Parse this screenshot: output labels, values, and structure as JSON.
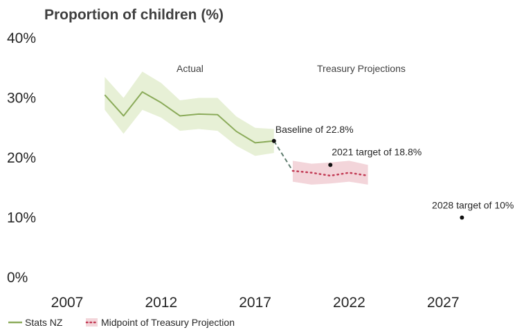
{
  "chart_data": {
    "type": "line",
    "title": "Proportion of children (%)",
    "xlabel": "",
    "ylabel": "",
    "xlim": [
      2007,
      2031
    ],
    "ylim": [
      0,
      40
    ],
    "x_ticks": [
      "2007",
      "2012",
      "2017",
      "2022",
      "2027"
    ],
    "y_ticks": [
      "0%",
      "10%",
      "20%",
      "30%",
      "40%"
    ],
    "grid": false,
    "legend_placement": "bottom-left",
    "section_labels": {
      "actual": "Actual",
      "projections": "Treasury Projections"
    },
    "series": [
      {
        "name": "Stats NZ",
        "color": "#8bab5a",
        "band_color": "#e7f0d6",
        "x": [
          2009,
          2010,
          2011,
          2012,
          2013,
          2014,
          2015,
          2016,
          2017,
          2018
        ],
        "y": [
          30.5,
          27.0,
          31.0,
          29.2,
          27.0,
          27.3,
          27.2,
          24.4,
          22.5,
          22.8
        ],
        "lower": [
          28.0,
          24.0,
          28.0,
          26.7,
          24.5,
          24.8,
          24.5,
          22.0,
          20.3,
          20.8
        ],
        "upper": [
          33.5,
          30.0,
          34.4,
          32.5,
          29.6,
          30.0,
          30.0,
          26.9,
          25.0,
          24.8
        ]
      },
      {
        "name": "Midpoint of Treasury Projection",
        "color": "#c23a54",
        "band_color": "#f3d5da",
        "x": [
          2019,
          2020,
          2021,
          2022,
          2023
        ],
        "y": [
          17.8,
          17.5,
          17.0,
          17.5,
          17.0
        ],
        "lower": [
          16.0,
          15.5,
          15.7,
          16.0,
          15.5
        ],
        "upper": [
          19.5,
          19.0,
          19.2,
          19.5,
          18.8
        ]
      }
    ],
    "connector": {
      "from": [
        2018,
        22.8
      ],
      "to": [
        2019,
        17.8
      ],
      "color": "#5f7c6e"
    },
    "annotations": [
      {
        "label": "Baseline of 22.8%",
        "x": 2018,
        "y": 22.8
      },
      {
        "label": "2021 target of 18.8%",
        "x": 2021,
        "y": 18.8
      },
      {
        "label": "2028 target of 10%",
        "x": 2028,
        "y": 10
      }
    ]
  }
}
